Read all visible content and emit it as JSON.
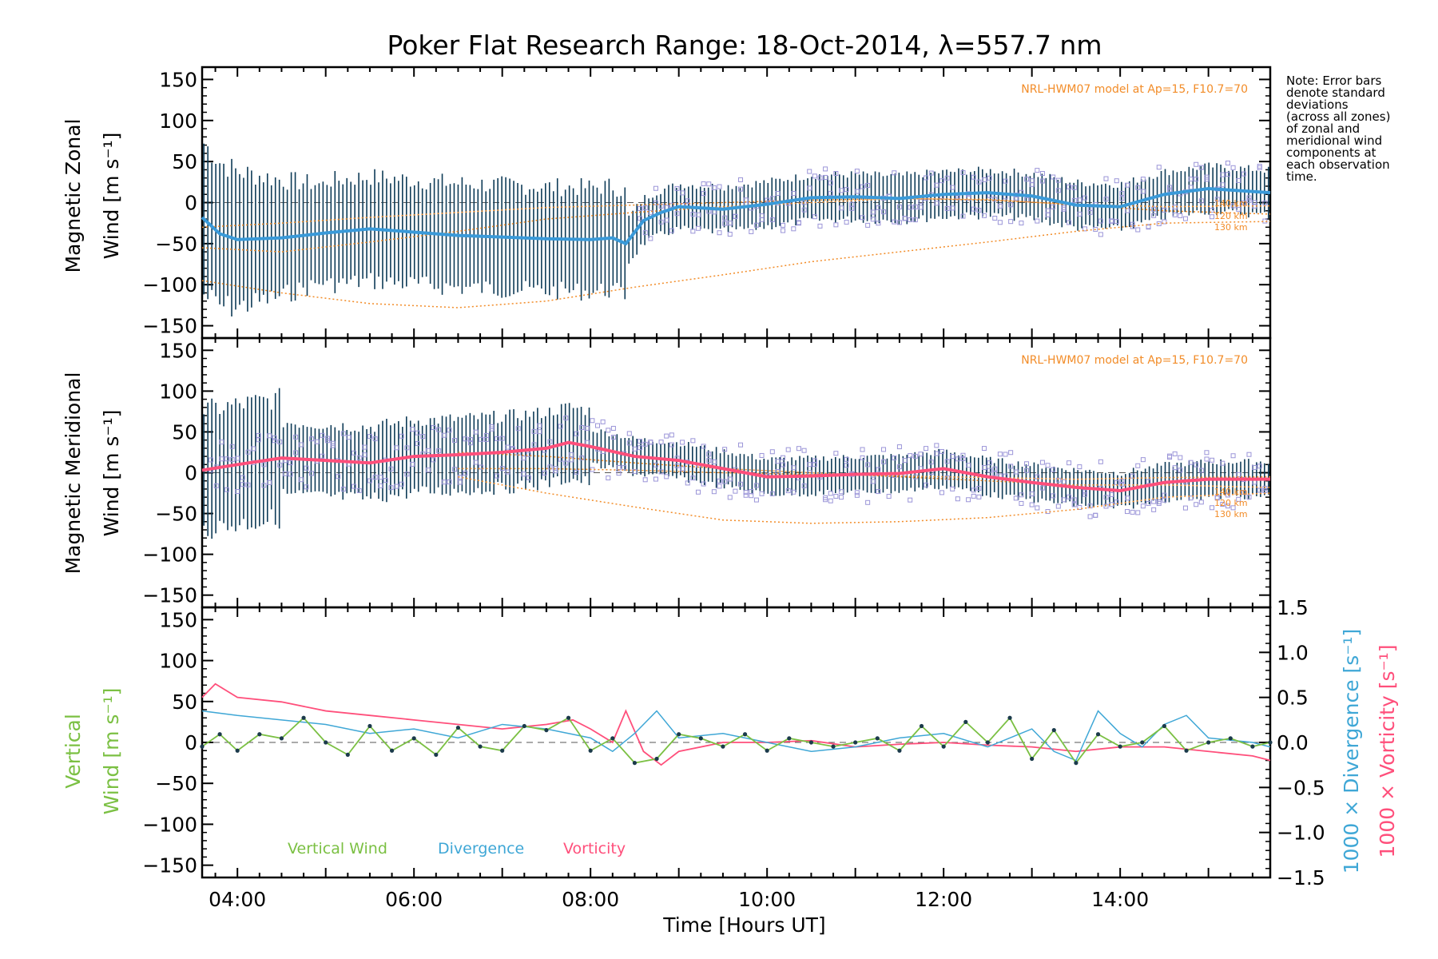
{
  "title": "Poker Flat Research Range: 18-Oct-2014, λ=557.7 nm",
  "note_lines": [
    "Note: Error bars",
    "denote standard",
    "deviations",
    "(across all zones)",
    "of zonal and",
    "meridional wind",
    "components at",
    "each observation",
    "time."
  ],
  "xlabel": "Time [Hours UT]",
  "x_tick_labels": [
    "04:00",
    "06:00",
    "08:00",
    "10:00",
    "12:00",
    "14:00"
  ],
  "y_tick_labels": [
    "150",
    "100",
    "50",
    "0",
    "−50",
    "−100",
    "−150"
  ],
  "y2_tick_labels": [
    "1.5",
    "1.0",
    "0.5",
    "0.0",
    "−0.5",
    "−1.0",
    "−1.5"
  ],
  "model_label": "NRL-HWM07 model at Ap=15, F10.7=70",
  "altitude_labels": [
    "140 km",
    "120 km",
    "130 km"
  ],
  "panel1": {
    "ylabel_line1": "Magnetic Zonal",
    "ylabel_line2": "Wind [m s⁻¹]"
  },
  "panel2": {
    "ylabel_line1": "Magnetic Meridional",
    "ylabel_line2": "Wind [m s⁻¹]"
  },
  "panel3": {
    "ylabel_line1": "Vertical",
    "ylabel_line2": "Wind [m s⁻¹]",
    "y2label_div": "1000 × Divergence [s⁻¹]",
    "y2label_vort": "1000 × Vorticity [s⁻¹]",
    "legend": [
      "Vertical Wind",
      "Divergence",
      "Vorticity"
    ]
  },
  "colors": {
    "zonal_mean": "#3a9ad9",
    "meridional_mean": "#ff4f7b",
    "vertical": "#7bc043",
    "divergence": "#3fa7d6",
    "vorticity": "#ff4f7b",
    "model": "#f28c28",
    "scatter": "#9b95d8",
    "errorbar": "#0e3b57"
  },
  "chart_data": {
    "type": "line",
    "x_unit": "hours UT",
    "x_range": [
      3.6,
      15.7
    ],
    "panels": [
      {
        "name": "Magnetic Zonal Wind",
        "ylim": [
          -165,
          165
        ],
        "mean": {
          "x": [
            3.6,
            3.8,
            4.0,
            4.5,
            5.0,
            5.5,
            6.0,
            6.5,
            7.0,
            7.5,
            8.0,
            8.25,
            8.4,
            8.6,
            8.8,
            9.0,
            9.5,
            10.0,
            10.5,
            11.0,
            11.5,
            12.0,
            12.5,
            13.0,
            13.5,
            14.0,
            14.5,
            15.0,
            15.7
          ],
          "y": [
            -18,
            -38,
            -45,
            -43,
            -37,
            -32,
            -36,
            -40,
            -42,
            -44,
            -45,
            -43,
            -50,
            -22,
            -12,
            -5,
            -8,
            -2,
            6,
            7,
            5,
            10,
            12,
            8,
            -3,
            -5,
            10,
            17,
            12
          ]
        },
        "model": {
          "x": [
            3.6,
            4.5,
            5.5,
            6.5,
            7.5,
            8.5,
            9.5,
            10.5,
            11.5,
            12.5,
            13.5,
            14.5,
            15.7
          ],
          "130 km": [
            -95,
            -110,
            -123,
            -128,
            -120,
            -103,
            -88,
            -72,
            -60,
            -48,
            -35,
            -25,
            -23
          ],
          "120 km": [
            -55,
            -60,
            -48,
            -35,
            -20,
            -12,
            -5,
            0,
            5,
            4,
            -3,
            -10,
            -14
          ],
          "140 km": [
            -30,
            -25,
            -18,
            -12,
            -6,
            -3,
            0,
            3,
            5,
            3,
            -2,
            -5,
            -4
          ]
        }
      },
      {
        "name": "Magnetic Meridional Wind",
        "ylim": [
          -165,
          165
        ],
        "mean": {
          "x": [
            3.6,
            4.0,
            4.5,
            5.0,
            5.5,
            6.0,
            6.5,
            7.0,
            7.5,
            7.75,
            8.0,
            8.5,
            9.0,
            9.5,
            10.0,
            10.5,
            11.0,
            11.5,
            12.0,
            12.5,
            13.0,
            13.5,
            14.0,
            14.5,
            15.0,
            15.7
          ],
          "y": [
            3,
            10,
            18,
            15,
            12,
            20,
            22,
            25,
            30,
            37,
            32,
            20,
            15,
            5,
            -5,
            -4,
            -2,
            -1,
            5,
            -5,
            -12,
            -18,
            -22,
            -12,
            -8,
            -8
          ]
        },
        "model": {
          "x": [
            6.5,
            7.5,
            8.5,
            9.5,
            10.5,
            11.5,
            12.5,
            13.5,
            14.5,
            15.7
          ],
          "130 km": [
            -5,
            -25,
            -42,
            -58,
            -62,
            -60,
            -55,
            -45,
            -30,
            -25
          ],
          "120 km": [
            25,
            20,
            12,
            5,
            0,
            -5,
            -10,
            -15,
            -15,
            -18
          ],
          "140 km": [
            5,
            5,
            3,
            0,
            -2,
            -4,
            -6,
            -8,
            -6,
            -5
          ]
        }
      },
      {
        "name": "Vertical Wind",
        "ylim": [
          -165,
          165
        ],
        "y2lim": [
          -1.5,
          1.5
        ],
        "vertical_wind": {
          "x": [
            3.6,
            3.8,
            4.0,
            4.25,
            4.5,
            4.75,
            5.0,
            5.25,
            5.5,
            5.75,
            6.0,
            6.25,
            6.5,
            6.75,
            7.0,
            7.25,
            7.5,
            7.75,
            8.0,
            8.25,
            8.5,
            8.75,
            9.0,
            9.25,
            9.5,
            9.75,
            10.0,
            10.25,
            10.5,
            10.75,
            11.0,
            11.25,
            11.5,
            11.75,
            12.0,
            12.25,
            12.5,
            12.75,
            13.0,
            13.25,
            13.5,
            13.75,
            14.0,
            14.25,
            14.5,
            14.75,
            15.0,
            15.25,
            15.5,
            15.7
          ],
          "y": [
            -5,
            10,
            -10,
            10,
            5,
            30,
            0,
            -15,
            20,
            -10,
            5,
            -15,
            18,
            -5,
            -10,
            20,
            15,
            30,
            -10,
            5,
            -25,
            -20,
            10,
            5,
            -5,
            10,
            -10,
            5,
            0,
            -5,
            0,
            5,
            -10,
            20,
            -5,
            25,
            0,
            30,
            -20,
            15,
            -25,
            10,
            -5,
            0,
            20,
            -10,
            0,
            5,
            -5,
            0
          ]
        },
        "divergence": {
          "x": [
            3.6,
            4.0,
            4.5,
            5.0,
            5.5,
            6.0,
            6.5,
            7.0,
            7.5,
            8.0,
            8.25,
            8.5,
            8.75,
            9.0,
            9.5,
            10.0,
            10.5,
            11.0,
            11.5,
            12.0,
            12.5,
            13.0,
            13.25,
            13.5,
            13.75,
            14.0,
            14.25,
            14.5,
            14.75,
            15.0,
            15.5,
            15.7
          ],
          "y": [
            0.35,
            0.3,
            0.25,
            0.2,
            0.1,
            0.15,
            0.05,
            0.2,
            0.15,
            0.05,
            -0.1,
            0.1,
            0.35,
            0.05,
            0.1,
            0.0,
            -0.1,
            -0.05,
            0.05,
            0.1,
            -0.05,
            0.15,
            -0.1,
            -0.2,
            0.35,
            0.1,
            -0.05,
            0.2,
            0.3,
            0.05,
            0.0,
            -0.05
          ]
        },
        "vorticity": {
          "x": [
            3.6,
            3.75,
            4.0,
            4.5,
            5.0,
            5.5,
            6.0,
            6.5,
            7.0,
            7.5,
            7.8,
            8.0,
            8.25,
            8.4,
            8.6,
            8.8,
            9.0,
            9.5,
            10.0,
            10.5,
            11.0,
            11.5,
            12.0,
            12.5,
            13.0,
            13.5,
            14.0,
            14.5,
            15.0,
            15.5,
            15.7
          ],
          "y": [
            0.5,
            0.65,
            0.5,
            0.45,
            0.35,
            0.3,
            0.25,
            0.2,
            0.15,
            0.2,
            0.25,
            0.15,
            0.0,
            0.35,
            -0.1,
            -0.25,
            -0.1,
            0.0,
            0.0,
            0.02,
            -0.05,
            -0.02,
            0.0,
            -0.03,
            -0.05,
            -0.1,
            -0.05,
            -0.05,
            -0.1,
            -0.15,
            -0.2
          ]
        }
      }
    ]
  }
}
